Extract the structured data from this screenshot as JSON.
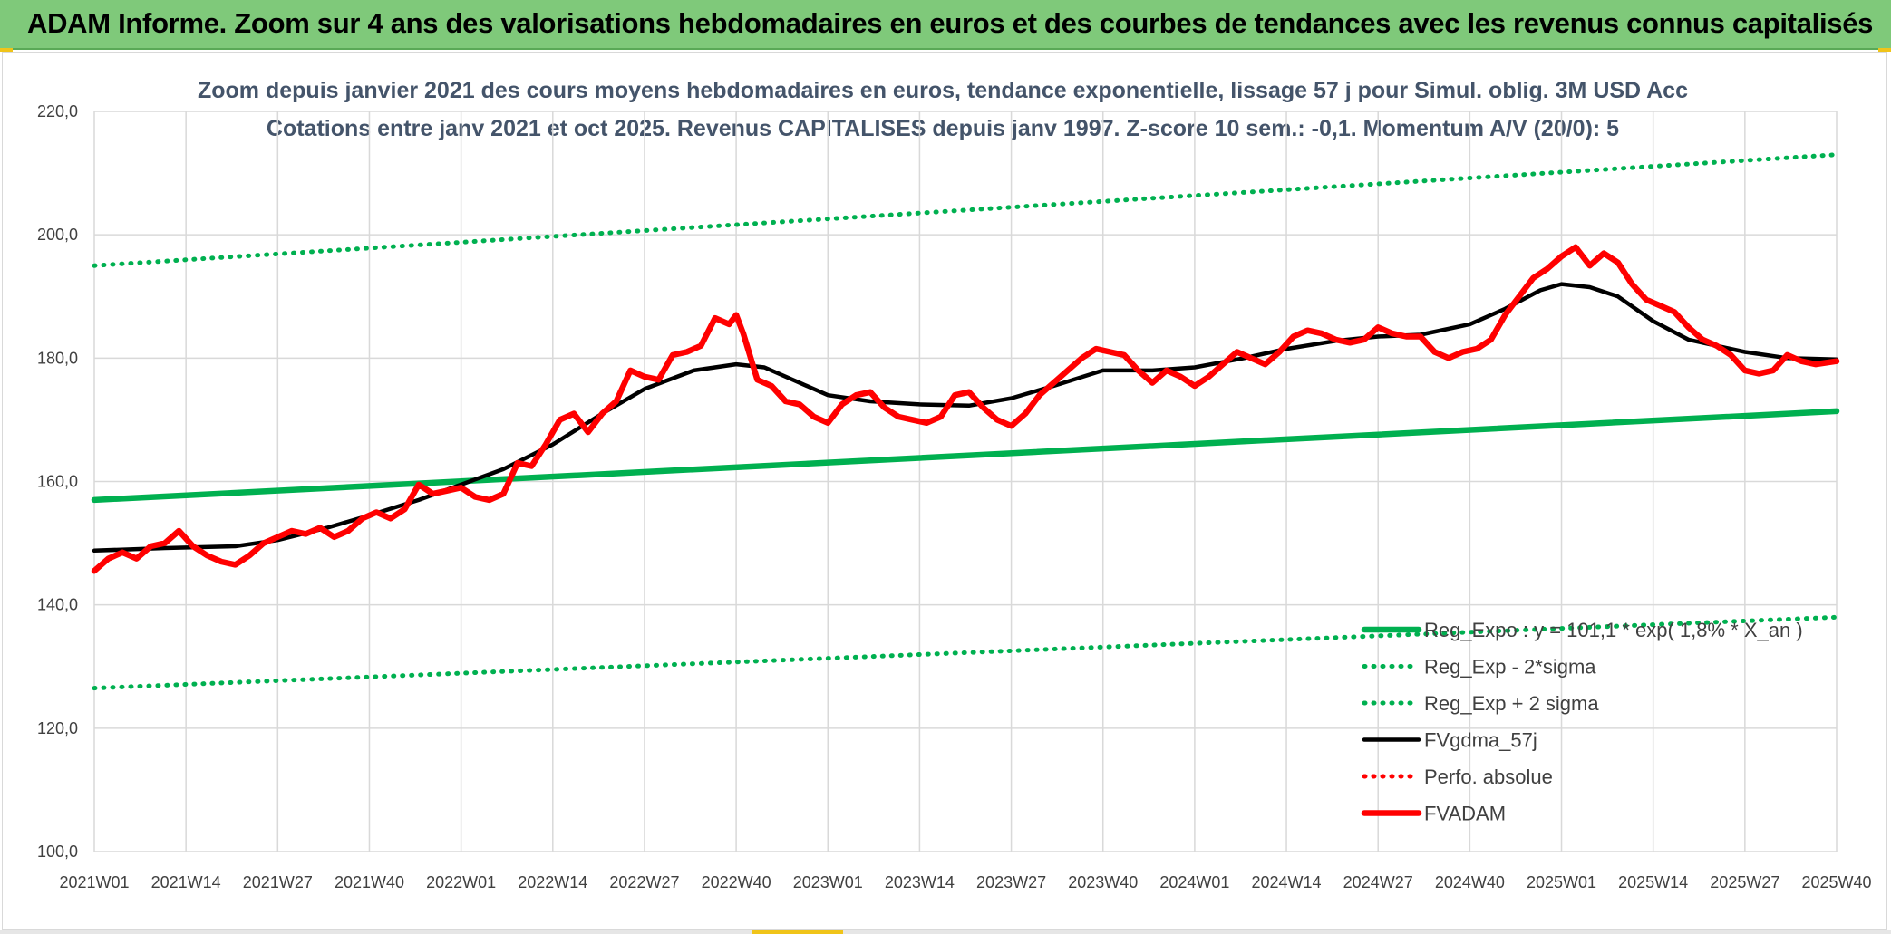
{
  "banner": {
    "title": "ADAM Informe. Zoom sur 4 ans des valorisations hebdomadaires en euros et des courbes de tendances avec les revenus connus capitalisés"
  },
  "colors": {
    "banner_bg": "#7fc97a",
    "reg_expo": "#00b050",
    "perfo": "#ff0000",
    "fvadam": "#ff0000",
    "fvgdma": "#000000",
    "grid": "#d9d9d9"
  },
  "chart_data": {
    "type": "line",
    "title": "Zoom depuis janvier 2021 des cours moyens hebdomadaires en euros, tendance exponentielle, lissage 57 j pour Simul. oblig. 3M USD Acc",
    "subtitle": "Cotations entre janv 2021 et oct 2025. Revenus CAPITALISES depuis janv 1997. Z-score 10 sem.: -0,1. Momentum A/V (20/0): 5",
    "xlabel": "",
    "ylabel": "",
    "ylim": [
      100,
      220
    ],
    "yticks": [
      "100,0",
      "120,0",
      "140,0",
      "160,0",
      "180,0",
      "200,0",
      "220,0"
    ],
    "yticks_values": [
      100,
      120,
      140,
      160,
      180,
      200,
      220
    ],
    "xticks": [
      "2021W01",
      "2021W14",
      "2021W27",
      "2021W40",
      "2022W01",
      "2022W14",
      "2022W27",
      "2022W40",
      "2023W01",
      "2023W14",
      "2023W27",
      "2023W40",
      "2024W01",
      "2024W14",
      "2024W27",
      "2024W40",
      "2025W01",
      "2025W14",
      "2025W27",
      "2025W40"
    ],
    "xticks_weeks": [
      0,
      13,
      26,
      39,
      52,
      65,
      78,
      91,
      104,
      117,
      130,
      143,
      156,
      169,
      182,
      195,
      208,
      221,
      234,
      247
    ],
    "xlim": [
      0,
      247
    ],
    "grid": true,
    "legend_position": "bottom-right",
    "series": [
      {
        "name": "Reg_Expo : y = 101,1 * exp( 1,8% * X_an )",
        "style": "solid-thick",
        "color": "#00b050",
        "x": [
          0,
          247
        ],
        "values": [
          157.0,
          171.4
        ]
      },
      {
        "name": "Reg_Exp - 2*sigma",
        "style": "dotted",
        "color": "#00b050",
        "x": [
          0,
          247
        ],
        "values": [
          126.5,
          138.0
        ]
      },
      {
        "name": "Reg_Exp + 2 sigma",
        "style": "dotted",
        "color": "#00b050",
        "x": [
          0,
          247
        ],
        "values": [
          195.0,
          213.0
        ]
      },
      {
        "name": "FVgdma_57j",
        "style": "solid",
        "color": "#000000",
        "x": [
          0,
          10,
          20,
          26,
          33,
          39,
          46,
          52,
          58,
          65,
          72,
          78,
          85,
          91,
          95,
          100,
          104,
          110,
          117,
          124,
          130,
          136,
          143,
          150,
          156,
          163,
          169,
          176,
          182,
          188,
          195,
          200,
          205,
          208,
          212,
          216,
          221,
          226,
          234,
          240,
          247
        ],
        "values": [
          148.8,
          149.2,
          149.5,
          150.5,
          152.5,
          154.5,
          157.0,
          159.5,
          162.0,
          166.0,
          171.0,
          175.0,
          178.0,
          179.0,
          178.5,
          176.0,
          174.0,
          173.0,
          172.5,
          172.3,
          173.5,
          175.5,
          178.0,
          178.0,
          178.5,
          180.0,
          181.5,
          182.8,
          183.5,
          183.8,
          185.5,
          188.0,
          191.0,
          192.0,
          191.5,
          190.0,
          186.0,
          183.0,
          181.0,
          180.0,
          179.8
        ]
      },
      {
        "name": "Perfo. absolue",
        "style": "dotted",
        "color": "#ff0000",
        "x": [],
        "values": []
      },
      {
        "name": "FVADAM",
        "style": "solid-thick",
        "color": "#ff0000",
        "x": [
          0,
          2,
          4,
          6,
          8,
          10,
          12,
          14,
          16,
          18,
          20,
          22,
          24,
          26,
          28,
          30,
          32,
          34,
          36,
          38,
          40,
          42,
          44,
          46,
          48,
          50,
          52,
          54,
          56,
          58,
          60,
          62,
          64,
          66,
          68,
          70,
          72,
          74,
          76,
          78,
          80,
          82,
          84,
          86,
          88,
          90,
          91,
          92,
          94,
          96,
          98,
          100,
          102,
          104,
          106,
          108,
          110,
          112,
          114,
          116,
          118,
          120,
          122,
          124,
          126,
          128,
          130,
          132,
          134,
          136,
          138,
          140,
          142,
          144,
          146,
          148,
          150,
          152,
          154,
          156,
          158,
          160,
          162,
          164,
          166,
          168,
          170,
          172,
          174,
          176,
          178,
          180,
          182,
          184,
          186,
          188,
          190,
          192,
          194,
          196,
          198,
          200,
          202,
          204,
          206,
          208,
          210,
          212,
          214,
          216,
          218,
          220,
          222,
          224,
          226,
          228,
          230,
          232,
          234,
          236,
          238,
          240,
          242,
          244,
          247
        ],
        "values": [
          145.5,
          147.5,
          148.5,
          147.5,
          149.5,
          150.0,
          152.0,
          149.5,
          148.0,
          147.0,
          146.5,
          148.0,
          150.0,
          151.0,
          152.0,
          151.5,
          152.5,
          151.0,
          152.0,
          154.0,
          155.0,
          154.0,
          155.5,
          159.5,
          158.0,
          158.5,
          159.0,
          157.5,
          157.0,
          158.0,
          163.0,
          162.5,
          166.0,
          170.0,
          171.0,
          168.0,
          171.0,
          173.0,
          178.0,
          177.0,
          176.5,
          180.5,
          181.0,
          182.0,
          186.5,
          185.5,
          187.0,
          184.0,
          176.5,
          175.5,
          173.0,
          172.5,
          170.5,
          169.5,
          172.5,
          174.0,
          174.5,
          172.0,
          170.5,
          170.0,
          169.5,
          170.5,
          174.0,
          174.5,
          172.0,
          170.0,
          169.0,
          171.0,
          174.0,
          176.0,
          178.0,
          180.0,
          181.5,
          181.0,
          180.5,
          178.0,
          176.0,
          178.0,
          177.0,
          175.5,
          177.0,
          179.0,
          181.0,
          180.0,
          179.0,
          181.0,
          183.5,
          184.5,
          184.0,
          183.0,
          182.5,
          183.0,
          185.0,
          184.0,
          183.5,
          183.5,
          181.0,
          180.0,
          181.0,
          181.5,
          183.0,
          187.0,
          190.0,
          193.0,
          194.5,
          196.5,
          198.0,
          195.0,
          197.0,
          195.5,
          192.0,
          189.5,
          188.5,
          187.5,
          185.0,
          183.0,
          182.0,
          180.5,
          178.0,
          177.5,
          178.0,
          180.5,
          179.5,
          179.0,
          179.5
        ]
      }
    ]
  }
}
